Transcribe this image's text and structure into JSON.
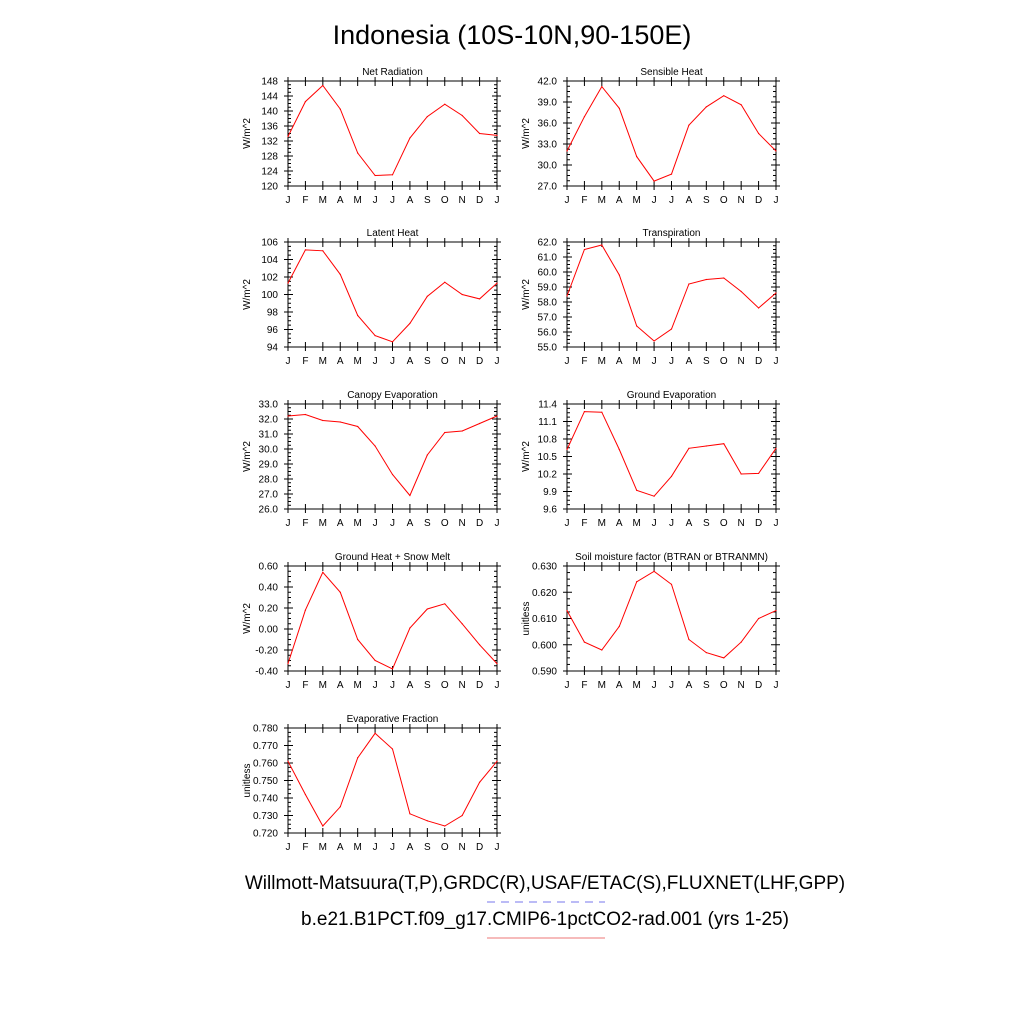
{
  "figure": {
    "title": "Indonesia (10S-10N,90-150E)",
    "legend": [
      {
        "label": "Willmott-Matsuura(T,P),GRDC(R),USAF/ETAC(S),FLUXNET(LHF,GPP)",
        "color": "#7777ee",
        "dash": "dashed"
      },
      {
        "label": "b.e21.B1PCT.f09_g17.CMIP6-1pctCO2-rad.001 (yrs 1-25)",
        "color": "#ee7777",
        "dash": "solid"
      }
    ]
  },
  "chart_data": [
    {
      "type": "line",
      "title": "Net Radiation",
      "ylabel": "W/m^2",
      "categories": [
        "J",
        "F",
        "M",
        "A",
        "M",
        "J",
        "J",
        "A",
        "S",
        "O",
        "N",
        "D",
        "J"
      ],
      "ylim": [
        120,
        148
      ],
      "yticks": [
        120,
        124,
        128,
        132,
        136,
        140,
        144,
        148
      ],
      "decimals": 0,
      "series": [
        {
          "color": "#ff0000",
          "values": [
            133.2,
            142.5,
            146.8,
            140.5,
            128.8,
            122.8,
            123.0,
            132.8,
            138.5,
            141.8,
            138.8,
            134.0,
            133.5
          ]
        }
      ]
    },
    {
      "type": "line",
      "title": "Sensible Heat",
      "ylabel": "W/m^2",
      "categories": [
        "J",
        "F",
        "M",
        "A",
        "M",
        "J",
        "J",
        "A",
        "S",
        "O",
        "N",
        "D",
        "J"
      ],
      "ylim": [
        27.0,
        42.0
      ],
      "yticks": [
        27,
        30,
        33,
        36,
        39,
        42
      ],
      "decimals": 1,
      "series": [
        {
          "color": "#ff0000",
          "values": [
            32.0,
            36.9,
            41.2,
            38.1,
            31.2,
            27.7,
            28.7,
            35.7,
            38.3,
            39.9,
            38.6,
            34.5,
            32.0
          ]
        }
      ]
    },
    {
      "type": "line",
      "title": "Latent Heat",
      "ylabel": "W/m^2",
      "categories": [
        "J",
        "F",
        "M",
        "A",
        "M",
        "J",
        "J",
        "A",
        "S",
        "O",
        "N",
        "D",
        "J"
      ],
      "ylim": [
        94,
        106
      ],
      "yticks": [
        94,
        96,
        98,
        100,
        102,
        104,
        106
      ],
      "decimals": 0,
      "series": [
        {
          "color": "#ff0000",
          "values": [
            101.3,
            105.1,
            105.0,
            102.3,
            97.6,
            95.3,
            94.6,
            96.7,
            99.8,
            101.4,
            100.0,
            99.5,
            101.3
          ]
        }
      ]
    },
    {
      "type": "line",
      "title": "Transpiration",
      "ylabel": "W/m^2",
      "categories": [
        "J",
        "F",
        "M",
        "A",
        "M",
        "J",
        "J",
        "A",
        "S",
        "O",
        "N",
        "D",
        "J"
      ],
      "ylim": [
        55.0,
        62.0
      ],
      "yticks": [
        55,
        56,
        57,
        58,
        59,
        60,
        61,
        62
      ],
      "decimals": 1,
      "series": [
        {
          "color": "#ff0000",
          "values": [
            58.4,
            61.5,
            61.8,
            59.8,
            56.4,
            55.4,
            56.2,
            59.2,
            59.5,
            59.6,
            58.7,
            57.6,
            58.6
          ]
        }
      ]
    },
    {
      "type": "line",
      "title": "Canopy Evaporation",
      "ylabel": "W/m^2",
      "categories": [
        "J",
        "F",
        "M",
        "A",
        "M",
        "J",
        "J",
        "A",
        "S",
        "O",
        "N",
        "D",
        "J"
      ],
      "ylim": [
        26.0,
        33.0
      ],
      "yticks": [
        26,
        27,
        28,
        29,
        30,
        31,
        32,
        33
      ],
      "decimals": 1,
      "series": [
        {
          "color": "#ff0000",
          "values": [
            32.2,
            32.3,
            31.9,
            31.8,
            31.5,
            30.2,
            28.3,
            26.9,
            29.6,
            31.1,
            31.2,
            31.7,
            32.2
          ]
        }
      ]
    },
    {
      "type": "line",
      "title": "Ground Evaporation",
      "ylabel": "W/m^2",
      "categories": [
        "J",
        "F",
        "M",
        "A",
        "M",
        "J",
        "J",
        "A",
        "S",
        "O",
        "N",
        "D",
        "J"
      ],
      "ylim": [
        9.6,
        11.4
      ],
      "yticks": [
        9.6,
        9.9,
        10.2,
        10.5,
        10.8,
        11.1,
        11.4
      ],
      "decimals": 1,
      "series": [
        {
          "color": "#ff0000",
          "values": [
            10.62,
            11.27,
            11.26,
            10.62,
            9.92,
            9.82,
            10.16,
            10.64,
            10.68,
            10.72,
            10.2,
            10.21,
            10.64
          ]
        }
      ]
    },
    {
      "type": "line",
      "title": "Ground Heat + Snow Melt",
      "ylabel": "W/m^2",
      "categories": [
        "J",
        "F",
        "M",
        "A",
        "M",
        "J",
        "J",
        "A",
        "S",
        "O",
        "N",
        "D",
        "J"
      ],
      "ylim": [
        -0.4,
        0.6
      ],
      "yticks": [
        -0.4,
        -0.2,
        0.0,
        0.2,
        0.4,
        0.6
      ],
      "decimals": 2,
      "series": [
        {
          "color": "#ff0000",
          "values": [
            -0.33,
            0.18,
            0.54,
            0.35,
            -0.1,
            -0.3,
            -0.38,
            0.01,
            0.19,
            0.24,
            0.05,
            -0.15,
            -0.33
          ]
        }
      ]
    },
    {
      "type": "line",
      "title": "Soil moisture factor (BTRAN or BTRANMN)",
      "ylabel": "unitless",
      "categories": [
        "J",
        "F",
        "M",
        "A",
        "M",
        "J",
        "J",
        "A",
        "S",
        "O",
        "N",
        "D",
        "J"
      ],
      "ylim": [
        0.59,
        0.63
      ],
      "yticks": [
        0.59,
        0.6,
        0.61,
        0.62,
        0.63
      ],
      "decimals": 3,
      "series": [
        {
          "color": "#ff0000",
          "values": [
            0.613,
            0.601,
            0.598,
            0.607,
            0.624,
            0.628,
            0.623,
            0.602,
            0.597,
            0.595,
            0.601,
            0.61,
            0.613
          ]
        }
      ]
    },
    {
      "type": "line",
      "title": "Evaporative Fraction",
      "ylabel": "unitless",
      "categories": [
        "J",
        "F",
        "M",
        "A",
        "M",
        "J",
        "J",
        "A",
        "S",
        "O",
        "N",
        "D",
        "J"
      ],
      "ylim": [
        0.72,
        0.78
      ],
      "yticks": [
        0.72,
        0.73,
        0.74,
        0.75,
        0.76,
        0.77,
        0.78
      ],
      "decimals": 3,
      "series": [
        {
          "color": "#ff0000",
          "values": [
            0.761,
            0.742,
            0.724,
            0.735,
            0.763,
            0.777,
            0.768,
            0.731,
            0.727,
            0.724,
            0.73,
            0.749,
            0.761
          ]
        }
      ]
    }
  ]
}
